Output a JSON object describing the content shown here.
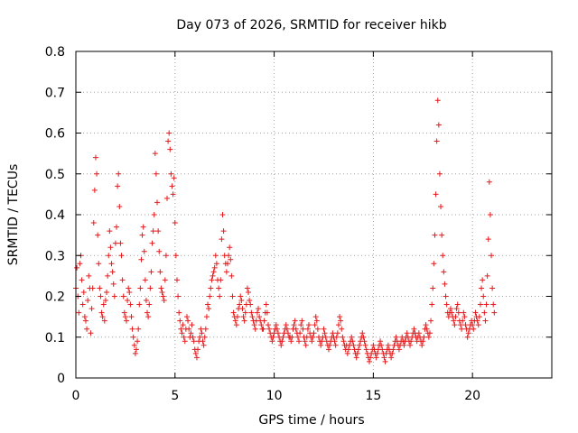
{
  "chart_data": {
    "type": "scatter",
    "title": "Day 073 of 2026, SRMTID for receiver hikb",
    "xlabel": "GPS time / hours",
    "ylabel": "SRMTID / TECUs",
    "xlim": [
      0,
      24
    ],
    "ylim": [
      0,
      0.8
    ],
    "xticks": [
      0,
      5,
      10,
      15,
      20
    ],
    "yticks": [
      0,
      0.1,
      0.2,
      0.3,
      0.4,
      0.5,
      0.6,
      0.7,
      0.8
    ],
    "xtick_labels": [
      "0",
      "5",
      "10",
      "15",
      "20"
    ],
    "ytick_labels": [
      "0",
      "0.1",
      "0.2",
      "0.3",
      "0.4",
      "0.5",
      "0.6",
      "0.7",
      "0.8"
    ],
    "grid": true,
    "marker": "+",
    "color": "#e41a1c",
    "x_step_hours": 0.05,
    "series": [
      {
        "name": "SRMTID",
        "x_start": 0,
        "values": [
          0.22,
          0.27,
          0.2,
          0.16,
          0.28,
          0.3,
          0.24,
          0.18,
          0.21,
          0.15,
          0.14,
          0.12,
          0.19,
          0.25,
          0.22,
          0.11,
          0.17,
          0.22,
          0.38,
          0.46,
          0.54,
          0.5,
          0.35,
          0.28,
          0.22,
          0.2,
          0.16,
          0.15,
          0.18,
          0.14,
          0.19,
          0.21,
          0.25,
          0.3,
          0.36,
          0.32,
          0.28,
          0.26,
          0.23,
          0.2,
          0.33,
          0.37,
          0.47,
          0.5,
          0.42,
          0.33,
          0.3,
          0.24,
          0.2,
          0.16,
          0.15,
          0.14,
          0.19,
          0.22,
          0.21,
          0.18,
          0.15,
          0.12,
          0.1,
          0.08,
          0.06,
          0.07,
          0.09,
          0.12,
          0.18,
          0.22,
          0.29,
          0.35,
          0.37,
          0.31,
          0.24,
          0.19,
          0.16,
          0.15,
          0.18,
          0.22,
          0.26,
          0.33,
          0.36,
          0.4,
          0.55,
          0.5,
          0.43,
          0.36,
          0.31,
          0.26,
          0.22,
          0.21,
          0.2,
          0.19,
          0.24,
          0.3,
          0.44,
          0.58,
          0.6,
          0.56,
          0.5,
          0.47,
          0.45,
          0.49,
          0.38,
          0.3,
          0.24,
          0.2,
          0.16,
          0.14,
          0.12,
          0.11,
          0.13,
          0.1,
          0.09,
          0.12,
          0.15,
          0.14,
          0.12,
          0.1,
          0.11,
          0.13,
          0.1,
          0.09,
          0.07,
          0.06,
          0.05,
          0.07,
          0.09,
          0.1,
          0.12,
          0.11,
          0.09,
          0.08,
          0.1,
          0.12,
          0.15,
          0.18,
          0.17,
          0.2,
          0.22,
          0.24,
          0.25,
          0.26,
          0.27,
          0.3,
          0.28,
          0.24,
          0.22,
          0.2,
          0.24,
          0.34,
          0.4,
          0.36,
          0.3,
          0.28,
          0.26,
          0.28,
          0.3,
          0.32,
          0.29,
          0.25,
          0.2,
          0.16,
          0.15,
          0.14,
          0.13,
          0.15,
          0.17,
          0.18,
          0.2,
          0.19,
          0.17,
          0.15,
          0.14,
          0.16,
          0.18,
          0.22,
          0.21,
          0.19,
          0.18,
          0.16,
          0.15,
          0.14,
          0.13,
          0.12,
          0.14,
          0.16,
          0.17,
          0.15,
          0.14,
          0.13,
          0.12,
          0.12,
          0.14,
          0.16,
          0.18,
          0.16,
          0.13,
          0.12,
          0.11,
          0.1,
          0.09,
          0.1,
          0.11,
          0.12,
          0.13,
          0.12,
          0.11,
          0.1,
          0.09,
          0.08,
          0.09,
          0.1,
          0.11,
          0.12,
          0.13,
          0.12,
          0.11,
          0.1,
          0.1,
          0.09,
          0.1,
          0.12,
          0.13,
          0.14,
          0.12,
          0.11,
          0.1,
          0.09,
          0.11,
          0.13,
          0.14,
          0.12,
          0.1,
          0.09,
          0.08,
          0.1,
          0.12,
          0.13,
          0.11,
          0.1,
          0.09,
          0.1,
          0.11,
          0.13,
          0.15,
          0.14,
          0.12,
          0.1,
          0.09,
          0.08,
          0.09,
          0.1,
          0.12,
          0.11,
          0.1,
          0.09,
          0.08,
          0.07,
          0.08,
          0.09,
          0.1,
          0.11,
          0.1,
          0.09,
          0.08,
          0.1,
          0.11,
          0.13,
          0.15,
          0.14,
          0.12,
          0.1,
          0.09,
          0.08,
          0.07,
          0.08,
          0.06,
          0.07,
          0.08,
          0.09,
          0.1,
          0.09,
          0.08,
          0.07,
          0.06,
          0.05,
          0.06,
          0.07,
          0.08,
          0.09,
          0.1,
          0.11,
          0.1,
          0.09,
          0.08,
          0.07,
          0.06,
          0.05,
          0.04,
          0.05,
          0.06,
          0.07,
          0.08,
          0.07,
          0.06,
          0.05,
          0.06,
          0.07,
          0.08,
          0.09,
          0.08,
          0.07,
          0.06,
          0.05,
          0.04,
          0.06,
          0.07,
          0.08,
          0.07,
          0.06,
          0.05,
          0.06,
          0.07,
          0.08,
          0.09,
          0.1,
          0.09,
          0.08,
          0.07,
          0.08,
          0.09,
          0.1,
          0.09,
          0.08,
          0.09,
          0.1,
          0.11,
          0.1,
          0.09,
          0.08,
          0.09,
          0.1,
          0.11,
          0.12,
          0.11,
          0.1,
          0.09,
          0.1,
          0.11,
          0.1,
          0.09,
          0.08,
          0.09,
          0.1,
          0.12,
          0.13,
          0.12,
          0.11,
          0.1,
          0.11,
          0.14,
          0.18,
          0.22,
          0.28,
          0.35,
          0.45,
          0.58,
          0.68,
          0.62,
          0.5,
          0.42,
          0.35,
          0.3,
          0.26,
          0.23,
          0.2,
          0.18,
          0.16,
          0.15,
          0.16,
          0.17,
          0.16,
          0.15,
          0.14,
          0.13,
          0.15,
          0.17,
          0.18,
          0.16,
          0.14,
          0.13,
          0.12,
          0.14,
          0.16,
          0.15,
          0.13,
          0.12,
          0.1,
          0.11,
          0.12,
          0.13,
          0.14,
          0.13,
          0.12,
          0.14,
          0.16,
          0.15,
          0.14,
          0.13,
          0.15,
          0.18,
          0.22,
          0.24,
          0.2,
          0.16,
          0.14,
          0.18,
          0.25,
          0.34,
          0.48,
          0.4,
          0.3,
          0.22,
          0.18,
          0.16
        ]
      }
    ]
  }
}
